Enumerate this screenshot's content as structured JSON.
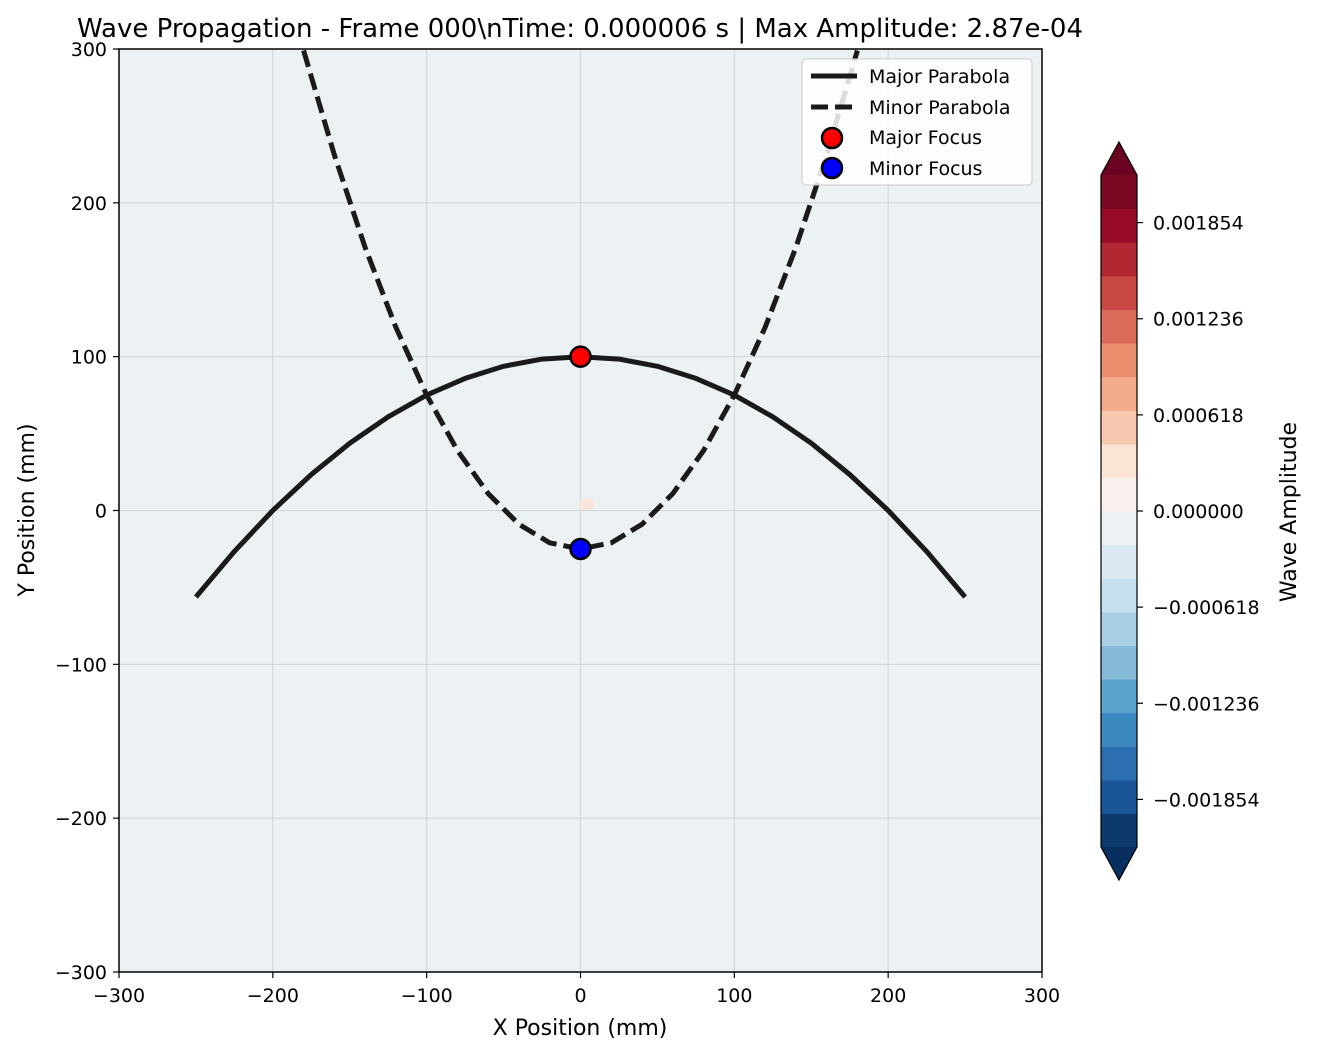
{
  "chart_data": {
    "type": "contour",
    "title": "Wave Propagation - Frame 000\\nTime: 0.000006 s | Max Amplitude: 2.87e-04",
    "xlabel": "X Position (mm)",
    "ylabel": "Y Position (mm)",
    "xlim": [
      -300,
      300
    ],
    "ylim": [
      -300,
      300
    ],
    "xticks": [
      -300,
      -200,
      -100,
      0,
      100,
      200,
      300
    ],
    "yticks": [
      -300,
      -200,
      -100,
      0,
      100,
      200,
      300
    ],
    "xtick_labels": [
      "−300",
      "−200",
      "−100",
      "0",
      "100",
      "200",
      "300"
    ],
    "ytick_labels": [
      "−300",
      "−200",
      "−100",
      "0",
      "100",
      "200",
      "300"
    ],
    "grid": true,
    "background_color": "#ecf1f3",
    "series": [
      {
        "name": "Major Parabola",
        "style": "solid",
        "color": "#1a1a1a",
        "x": [
          -250,
          -225,
          -200,
          -175,
          -150,
          -125,
          -100,
          -75,
          -50,
          -25,
          0,
          25,
          50,
          75,
          100,
          125,
          150,
          175,
          200,
          225,
          250
        ],
        "y": [
          -56.25,
          -26.6,
          0,
          23.4,
          43.75,
          60.9,
          75,
          85.9,
          93.75,
          98.4,
          100,
          98.4,
          93.75,
          85.9,
          75,
          60.9,
          43.75,
          23.4,
          0,
          -26.6,
          -56.25
        ]
      },
      {
        "name": "Minor Parabola",
        "style": "dashed",
        "color": "#1a1a1a",
        "x": [
          -180,
          -160,
          -140,
          -120,
          -100,
          -80,
          -60,
          -40,
          -20,
          0,
          20,
          40,
          60,
          80,
          100,
          120,
          140,
          160,
          180
        ],
        "y": [
          299,
          231,
          171,
          119,
          75,
          39,
          11,
          -9,
          -21,
          -25,
          -21,
          -9,
          11,
          39,
          75,
          119,
          171,
          231,
          299
        ]
      },
      {
        "name": "Major Focus",
        "style": "marker",
        "color": "#ff0000",
        "x": [
          0
        ],
        "y": [
          100
        ]
      },
      {
        "name": "Minor Focus",
        "style": "marker",
        "color": "#0000ff",
        "x": [
          0
        ],
        "y": [
          -25
        ]
      }
    ],
    "wave_source": {
      "x": 4,
      "y": 4,
      "color": "#fbe4dc"
    },
    "legend": {
      "position": "top-right",
      "entries": [
        {
          "label": "Major Parabola",
          "style": "solid"
        },
        {
          "label": "Minor Parabola",
          "style": "dashed"
        },
        {
          "label": "Major Focus",
          "style": "marker",
          "color": "#ff0000"
        },
        {
          "label": "Minor Focus",
          "style": "marker",
          "color": "#0000ff"
        }
      ]
    },
    "colorbar": {
      "label": "Wave Amplitude",
      "vmin": -0.00216,
      "vmax": 0.00216,
      "ticks": [
        -0.001854,
        -0.001236,
        -0.000618,
        0.0,
        0.000618,
        0.001236,
        0.001854
      ],
      "tick_labels": [
        "−0.001854",
        "−0.001236",
        "−0.000618",
        "0.000000",
        "0.000618",
        "0.001236",
        "0.001854"
      ],
      "extend": "both",
      "colors": [
        "#0c3a6c",
        "#1a5597",
        "#2c6fb1",
        "#3c88c0",
        "#5ba3cf",
        "#86bad9",
        "#a9cfe5",
        "#c6dfee",
        "#dbe9f3",
        "#edf2f5",
        "#f8f0ec",
        "#fbe3d6",
        "#f9c8b0",
        "#f4ab89",
        "#ea8e6e",
        "#dc6c5a",
        "#c94844",
        "#b02731",
        "#990c28",
        "#7a0822"
      ],
      "under_color": "#073060",
      "over_color": "#6b0421"
    }
  }
}
